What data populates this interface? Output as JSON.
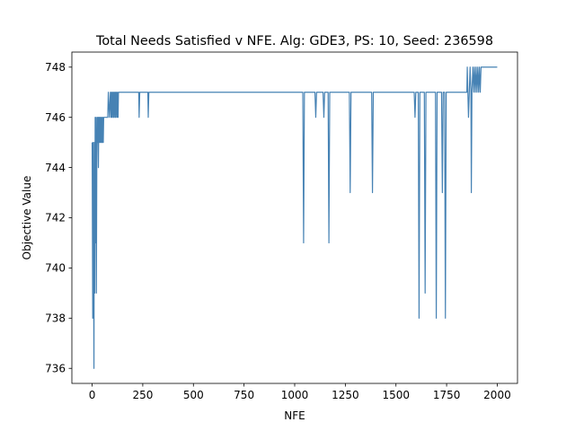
{
  "chart_data": {
    "type": "line",
    "title": "Total Needs Satisfied v NFE. Alg: GDE3, PS: 10, Seed: 236598",
    "xlabel": "NFE",
    "ylabel": "Objective Value",
    "xlim": [
      -100,
      2100
    ],
    "ylim": [
      735.4,
      748.6
    ],
    "xticks": [
      0,
      250,
      500,
      750,
      1000,
      1250,
      1500,
      1750,
      2000
    ],
    "yticks": [
      736,
      738,
      740,
      742,
      744,
      746,
      748
    ],
    "grid": false,
    "legend": "none",
    "line_color": "#4682b4",
    "series": [
      {
        "x": [
          0,
          3,
          5,
          7,
          9,
          11,
          13,
          15,
          17,
          19,
          21,
          23,
          25,
          27,
          29,
          31,
          33,
          35,
          37,
          39,
          41,
          43,
          45,
          47,
          49,
          51,
          53,
          55,
          57,
          59,
          61,
          63,
          65,
          67,
          69,
          71,
          73,
          75,
          77,
          80,
          85,
          90,
          93,
          95,
          97,
          100,
          103,
          105,
          107,
          110,
          113,
          115,
          117,
          120,
          123,
          125,
          128,
          130,
          135,
          140,
          230,
          232,
          235,
          275,
          277,
          280,
          1040,
          1044,
          1048,
          1100,
          1104,
          1108,
          1140,
          1144,
          1148,
          1165,
          1169,
          1173,
          1270,
          1274,
          1278,
          1380,
          1384,
          1388,
          1590,
          1594,
          1598,
          1610,
          1614,
          1618,
          1640,
          1644,
          1648,
          1695,
          1699,
          1703,
          1725,
          1729,
          1733,
          1740,
          1744,
          1748,
          1850,
          1852,
          1855,
          1858,
          1862,
          1866,
          1870,
          1872,
          1875,
          1880,
          1884,
          1888,
          1892,
          1896,
          1900,
          1904,
          1908,
          1912,
          1916,
          1920,
          1925,
          2000
        ],
        "y": [
          745,
          738,
          745,
          740,
          736,
          745,
          739,
          746,
          741,
          746,
          739,
          744,
          746,
          745,
          746,
          744,
          746,
          745,
          746,
          745,
          746,
          745,
          746,
          745,
          746,
          745,
          746,
          745,
          746,
          746,
          746,
          746,
          746,
          746,
          746,
          746,
          746,
          746,
          746,
          747,
          746,
          747,
          746,
          747,
          746,
          747,
          746,
          747,
          746,
          747,
          746,
          747,
          746,
          747,
          746,
          747,
          746,
          747,
          747,
          747,
          747,
          746,
          747,
          747,
          746,
          747,
          747,
          741,
          747,
          747,
          746,
          747,
          747,
          746,
          747,
          747,
          741,
          747,
          747,
          743,
          747,
          747,
          743,
          747,
          747,
          746,
          747,
          747,
          738,
          747,
          747,
          739,
          747,
          747,
          738,
          747,
          747,
          743,
          747,
          747,
          738,
          747,
          747,
          748,
          747,
          746,
          747,
          748,
          747,
          743,
          747,
          748,
          747,
          748,
          747,
          748,
          747,
          748,
          747,
          748,
          747,
          748,
          748,
          748
        ]
      }
    ]
  }
}
